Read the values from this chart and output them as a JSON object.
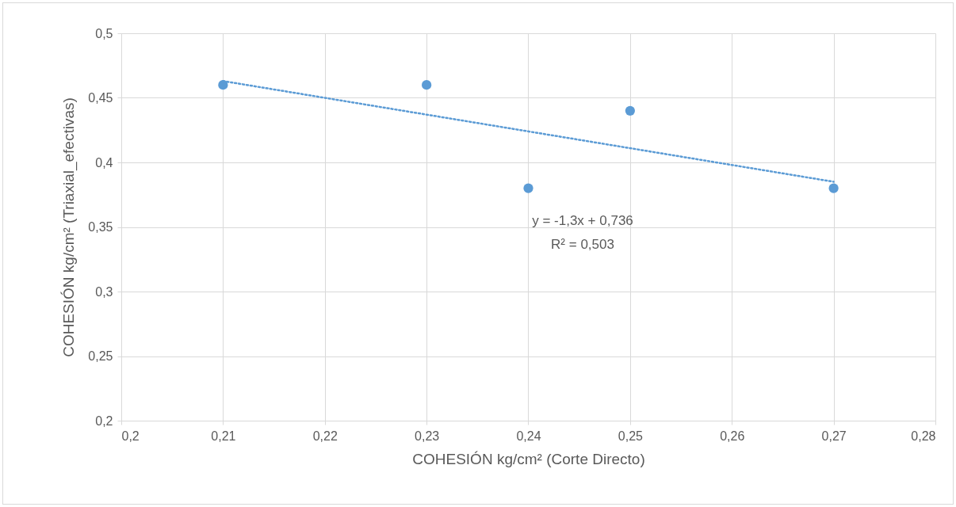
{
  "chart_data": {
    "type": "scatter",
    "xlabel": "COHESIÓN kg/cm² (Corte Directo)",
    "ylabel": "COHESIÓN  kg/cm² (Triaxial_efectivas)",
    "xlim": [
      0.2,
      0.28
    ],
    "ylim": [
      0.2,
      0.5
    ],
    "xticks": [
      {
        "value": 0.2,
        "label": "0,2"
      },
      {
        "value": 0.21,
        "label": "0,21"
      },
      {
        "value": 0.22,
        "label": "0,22"
      },
      {
        "value": 0.23,
        "label": "0,23"
      },
      {
        "value": 0.24,
        "label": "0,24"
      },
      {
        "value": 0.25,
        "label": "0,25"
      },
      {
        "value": 0.26,
        "label": "0,26"
      },
      {
        "value": 0.27,
        "label": "0,27"
      },
      {
        "value": 0.28,
        "label": "0,28"
      }
    ],
    "yticks": [
      {
        "value": 0.2,
        "label": "0,2"
      },
      {
        "value": 0.25,
        "label": "0,25"
      },
      {
        "value": 0.3,
        "label": "0,3"
      },
      {
        "value": 0.35,
        "label": "0,35"
      },
      {
        "value": 0.4,
        "label": "0,4"
      },
      {
        "value": 0.45,
        "label": "0,45"
      },
      {
        "value": 0.5,
        "label": "0,5"
      }
    ],
    "grid": true,
    "marker": "circle",
    "series": [
      {
        "type": "line",
        "color": "#5b9bd5",
        "x": [
          0.21,
          0.27
        ],
        "values": [
          0.463,
          0.385
        ],
        "line_style": "dotted",
        "marker": "none"
      },
      {
        "color": "#5b9bd5",
        "x": [
          0.21,
          0.23,
          0.24,
          0.25,
          0.27
        ],
        "values": [
          0.46,
          0.46,
          0.38,
          0.44,
          0.38
        ]
      }
    ],
    "annotations": [
      "y = -1,3x + 0,736",
      "R² = 0,503"
    ]
  }
}
